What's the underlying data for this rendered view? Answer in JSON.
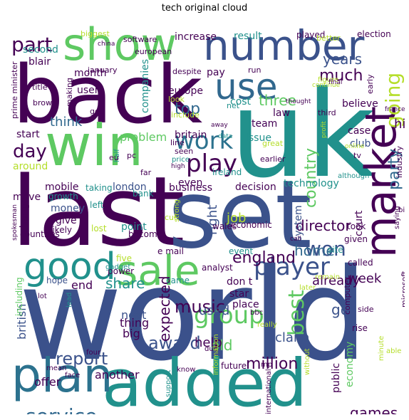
{
  "title": "tech original cloud",
  "words": [
    {
      "text": "world",
      "color": "#3b518b"
    },
    {
      "text": "last",
      "color": "#440154"
    },
    {
      "text": "set",
      "color": "#3b528b"
    },
    {
      "text": "uk",
      "color": "#21918c"
    },
    {
      "text": "back",
      "color": "#440154"
    },
    {
      "text": "added",
      "color": "#21918c"
    },
    {
      "text": "number",
      "color": "#3b528b"
    },
    {
      "text": "show",
      "color": "#5ec962"
    },
    {
      "text": "win",
      "color": "#5ec962"
    },
    {
      "text": "plan",
      "color": "#2c728e"
    },
    {
      "text": "market",
      "color": "#440154"
    },
    {
      "text": "sale",
      "color": "#5ec962"
    },
    {
      "text": "good",
      "color": "#21918c"
    },
    {
      "text": "use",
      "color": "#31688e"
    },
    {
      "text": "player",
      "color": "#3b528b"
    },
    {
      "text": "group",
      "color": "#5ec962"
    },
    {
      "text": "service",
      "color": "#31688e"
    },
    {
      "text": "work",
      "color": "#2c728e"
    },
    {
      "text": "play",
      "color": "#440154"
    },
    {
      "text": "part",
      "color": "#440154"
    },
    {
      "text": "going",
      "color": "#b5de2b"
    },
    {
      "text": "won",
      "color": "#3b528b"
    },
    {
      "text": "report",
      "color": "#3b528b"
    },
    {
      "text": "best",
      "color": "#5ec962"
    },
    {
      "text": "england",
      "color": "#440154"
    },
    {
      "text": "million",
      "color": "#440154"
    },
    {
      "text": "day",
      "color": "#440154"
    },
    {
      "text": "music",
      "color": "#440154"
    },
    {
      "text": "award",
      "color": "#3b528b"
    },
    {
      "text": "country",
      "color": "#5ec962"
    },
    {
      "text": "party",
      "color": "#31688e"
    },
    {
      "text": "record",
      "color": "#31688e"
    },
    {
      "text": "deal",
      "color": "#b5de2b"
    },
    {
      "text": "top",
      "color": "#31688e"
    },
    {
      "text": "much",
      "color": "#440154"
    },
    {
      "text": "three",
      "color": "#5ec962"
    },
    {
      "text": "years",
      "color": "#3b528b"
    },
    {
      "text": "home",
      "color": "#31688e"
    },
    {
      "text": "share",
      "color": "#21918c"
    },
    {
      "text": "expected",
      "color": "#440154"
    },
    {
      "text": "old",
      "color": "#5ec962"
    },
    {
      "text": "games",
      "color": "#440154"
    },
    {
      "text": "director",
      "color": "#440154"
    },
    {
      "text": "help",
      "color": "#440154"
    },
    {
      "text": "used",
      "color": "#3b528b"
    },
    {
      "text": "think",
      "color": "#31688e"
    },
    {
      "text": "hit",
      "color": "#440154"
    },
    {
      "text": "week",
      "color": "#440154"
    },
    {
      "text": "already",
      "color": "#440154"
    },
    {
      "text": "right",
      "color": "#3b528b"
    },
    {
      "text": "job",
      "color": "#b5de2b"
    },
    {
      "text": "go",
      "color": "#3b528b"
    },
    {
      "text": "claim",
      "color": "#3b528b"
    },
    {
      "text": "according",
      "color": "#31688e"
    },
    {
      "text": "former",
      "color": "#440154"
    },
    {
      "text": "british",
      "color": "#3b528b"
    },
    {
      "text": "end",
      "color": "#440154"
    },
    {
      "text": "next",
      "color": "#3b528b"
    },
    {
      "text": "thing",
      "color": "#440154"
    },
    {
      "text": "big",
      "color": "#440154"
    },
    {
      "text": "another",
      "color": "#440154"
    },
    {
      "text": "offer",
      "color": "#440154"
    },
    {
      "text": "decision",
      "color": "#440154"
    },
    {
      "text": "technology",
      "color": "#21918c"
    },
    {
      "text": "london",
      "color": "#3b528b"
    },
    {
      "text": "mobile",
      "color": "#440154"
    },
    {
      "text": "problem",
      "color": "#5ec962"
    },
    {
      "text": "team",
      "color": "#440154"
    },
    {
      "text": "issue",
      "color": "#21918c"
    },
    {
      "text": "believe",
      "color": "#440154"
    },
    {
      "text": "law",
      "color": "#440154"
    },
    {
      "text": "cost",
      "color": "#21918c"
    },
    {
      "text": "case",
      "color": "#440154"
    },
    {
      "text": "club",
      "color": "#3b528b"
    },
    {
      "text": "start",
      "color": "#440154"
    },
    {
      "text": "around",
      "color": "#b5de2b"
    },
    {
      "text": "money",
      "color": "#3b528b"
    },
    {
      "text": "give",
      "color": "#440154"
    },
    {
      "text": "move",
      "color": "#440154"
    },
    {
      "text": "change",
      "color": "#440154"
    },
    {
      "text": "point",
      "color": "#21918c"
    },
    {
      "text": "business",
      "color": "#440154"
    },
    {
      "text": "even",
      "color": "#440154"
    },
    {
      "text": "system",
      "color": "#3b528b"
    },
    {
      "text": "court",
      "color": "#440154"
    },
    {
      "text": "don t",
      "color": "#440154"
    },
    {
      "text": "star",
      "color": "#440154"
    },
    {
      "text": "place",
      "color": "#440154"
    },
    {
      "text": "came",
      "color": "#21918c"
    },
    {
      "text": "second",
      "color": "#21918c"
    },
    {
      "text": "blair",
      "color": "#440154"
    },
    {
      "text": "month",
      "color": "#440154"
    },
    {
      "text": "increase",
      "color": "#440154"
    },
    {
      "text": "result",
      "color": "#21918c"
    },
    {
      "text": "played",
      "color": "#440154"
    },
    {
      "text": "election",
      "color": "#440154"
    },
    {
      "text": "pay",
      "color": "#440154"
    },
    {
      "text": "europe",
      "color": "#440154"
    },
    {
      "text": "companies",
      "color": "#21918c"
    },
    {
      "text": "user",
      "color": "#440154"
    },
    {
      "text": "britain",
      "color": "#440154"
    },
    {
      "text": "public",
      "color": "#440154"
    },
    {
      "text": "economy",
      "color": "#5ec962"
    },
    {
      "text": "future",
      "color": "#440154"
    },
    {
      "text": "chance",
      "color": "#440154"
    },
    {
      "text": "based",
      "color": "#440154"
    },
    {
      "text": "including",
      "color": "#5ec962"
    },
    {
      "text": "hope",
      "color": "#3b528b"
    },
    {
      "text": "called",
      "color": "#440154"
    },
    {
      "text": "given",
      "color": "#440154"
    },
    {
      "text": "site",
      "color": "#21918c"
    },
    {
      "text": "ireland",
      "color": "#21918c"
    },
    {
      "text": "wales",
      "color": "#440154"
    },
    {
      "text": "took",
      "color": "#440154"
    },
    {
      "text": "economic",
      "color": "#440154"
    },
    {
      "text": "event",
      "color": "#21918c"
    },
    {
      "text": "become",
      "color": "#440154"
    },
    {
      "text": "likely",
      "color": "#440154"
    },
    {
      "text": "lost",
      "color": "#b5de2b"
    },
    {
      "text": "growth",
      "color": "#21918c"
    },
    {
      "text": "taking",
      "color": "#21918c"
    },
    {
      "text": "left",
      "color": "#21918c"
    },
    {
      "text": "bank",
      "color": "#21918c"
    },
    {
      "text": "countries",
      "color": "#440154"
    },
    {
      "text": "power",
      "color": "#440154"
    },
    {
      "text": "five",
      "color": "#b5de2b"
    },
    {
      "text": "gadget",
      "color": "#21918c"
    },
    {
      "text": "e mail",
      "color": "#440154"
    },
    {
      "text": "analyst",
      "color": "#440154"
    },
    {
      "text": "computer",
      "color": "#440154"
    },
    {
      "text": "microsoft",
      "color": "#440154"
    },
    {
      "text": "side",
      "color": "#440154"
    },
    {
      "text": "rise",
      "color": "#440154"
    },
    {
      "text": "later",
      "color": "#b5de2b"
    },
    {
      "text": "remain",
      "color": "#b5de2b"
    },
    {
      "text": "bbc",
      "color": "#440154"
    },
    {
      "text": "really",
      "color": "#b5de2b"
    },
    {
      "text": "lead",
      "color": "#21918c"
    },
    {
      "text": "four",
      "color": "#440154"
    },
    {
      "text": "face",
      "color": "#440154"
    },
    {
      "text": "mean",
      "color": "#440154"
    },
    {
      "text": "know",
      "color": "#440154"
    },
    {
      "text": "due",
      "color": "#440154"
    },
    {
      "text": "support",
      "color": "#21918c"
    },
    {
      "text": "information",
      "color": "#b5de2b"
    },
    {
      "text": "mp",
      "color": "#440154"
    },
    {
      "text": "international",
      "color": "#440154"
    },
    {
      "text": "without",
      "color": "#b5de2b"
    },
    {
      "text": "firms",
      "color": "#440154"
    },
    {
      "text": "phone",
      "color": "#b5de2b"
    },
    {
      "text": "minute",
      "color": "#b5de2b"
    },
    {
      "text": "able",
      "color": "#b5de2b"
    },
    {
      "text": "lot",
      "color": "#440154"
    },
    {
      "text": "prime minister",
      "color": "#440154"
    },
    {
      "text": "title",
      "color": "#440154"
    },
    {
      "text": "brown",
      "color": "#440154"
    },
    {
      "text": "making",
      "color": "#440154"
    },
    {
      "text": "january",
      "color": "#440154"
    },
    {
      "text": "european",
      "color": "#440154"
    },
    {
      "text": "despite",
      "color": "#440154"
    },
    {
      "text": "software",
      "color": "#440154"
    },
    {
      "text": "biggest",
      "color": "#b5de2b"
    },
    {
      "text": "run",
      "color": "#440154"
    },
    {
      "text": "early",
      "color": "#440154"
    },
    {
      "text": "figure",
      "color": "#b5de2b"
    },
    {
      "text": "continue",
      "color": "#b5de2b"
    },
    {
      "text": "thought",
      "color": "#440154"
    },
    {
      "text": "final",
      "color": "#440154"
    },
    {
      "text": "better",
      "color": "#b5de2b"
    },
    {
      "text": "look",
      "color": "#b5de2b"
    },
    {
      "text": "include",
      "color": "#b5de2b"
    },
    {
      "text": "got",
      "color": "#440154"
    },
    {
      "text": "net",
      "color": "#21918c"
    },
    {
      "text": "third",
      "color": "#440154"
    },
    {
      "text": "france",
      "color": "#440154"
    },
    {
      "text": "profit",
      "color": "#b5de2b"
    },
    {
      "text": "great",
      "color": "#b5de2b"
    },
    {
      "text": "away",
      "color": "#440154"
    },
    {
      "text": "data",
      "color": "#21918c"
    },
    {
      "text": "earlier",
      "color": "#440154"
    },
    {
      "text": "online",
      "color": "#b5de2b"
    },
    {
      "text": "tv",
      "color": "#440154"
    },
    {
      "text": "although",
      "color": "#21918c"
    },
    {
      "text": "industry",
      "color": "#440154"
    },
    {
      "text": "line",
      "color": "#440154"
    },
    {
      "text": "seen",
      "color": "#440154"
    },
    {
      "text": "half",
      "color": "#21918c"
    },
    {
      "text": "price",
      "color": "#21918c"
    },
    {
      "text": "high",
      "color": "#440154"
    },
    {
      "text": "eu",
      "color": "#440154"
    },
    {
      "text": "pc",
      "color": "#440154"
    },
    {
      "text": "far",
      "color": "#440154"
    },
    {
      "text": "cut",
      "color": "#b5de2b"
    },
    {
      "text": "strong",
      "color": "#b5de2b"
    },
    {
      "text": "call",
      "color": "#440154"
    },
    {
      "text": "bill",
      "color": "#440154"
    },
    {
      "text": "saying",
      "color": "#440154"
    },
    {
      "text": "spokesman",
      "color": "#440154"
    },
    {
      "text": "china",
      "color": "#440154"
    }
  ]
}
